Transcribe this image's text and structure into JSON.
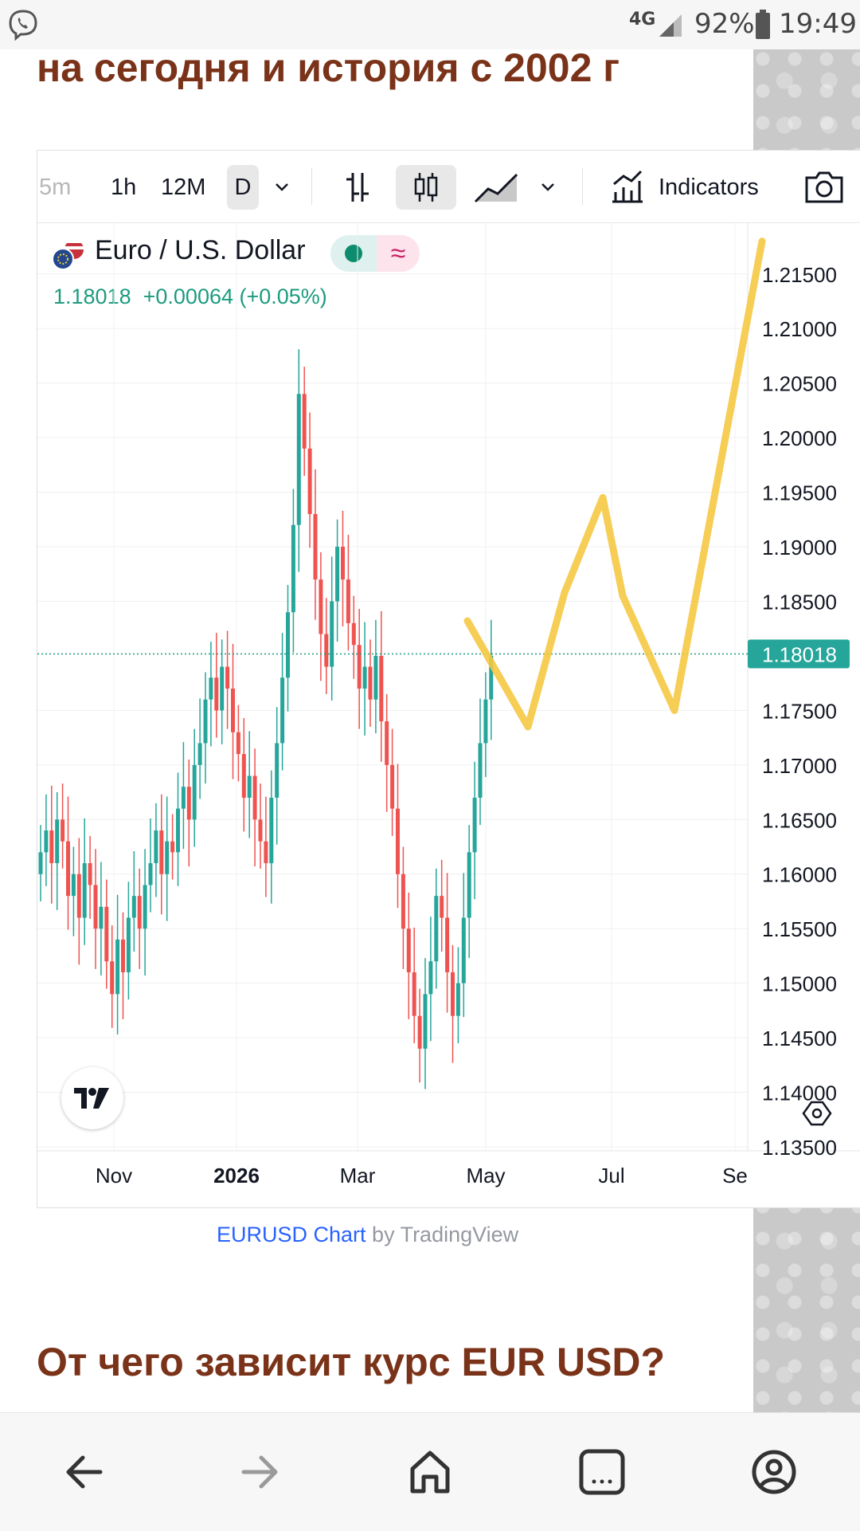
{
  "status_bar": {
    "network": "4G",
    "battery": "92%",
    "time": "19:49"
  },
  "article": {
    "top_heading": "на сегодня и история с 2002 г",
    "next_heading": "От чего зависит курс EUR USD?"
  },
  "toolbar": {
    "intervals": [
      "5m",
      "1h",
      "12M",
      "D"
    ],
    "indicators_label": "Indicators"
  },
  "legend": {
    "symbol": "Euro / U.S. Dollar",
    "last": "1.18018",
    "change": "+0.00064 (+0.05%)"
  },
  "price_axis": {
    "labels": [
      "1.21500",
      "1.21000",
      "1.20500",
      "1.20000",
      "1.19500",
      "1.19000",
      "1.18500",
      "1.17500",
      "1.17000",
      "1.16500",
      "1.16000",
      "1.15500",
      "1.15000",
      "1.14500",
      "1.14000",
      "1.13500"
    ],
    "current_price": "1.18018"
  },
  "time_axis": {
    "labels": [
      "Nov",
      "2026",
      "Mar",
      "May",
      "Jul",
      "Se"
    ]
  },
  "footer": {
    "link": "EURUSD Chart",
    "by": " by TradingView"
  },
  "colors": {
    "up": "#26a69a",
    "down": "#ef5350",
    "heading": "#7a3319",
    "accent": "#2962ff",
    "drawing": "#f5c842"
  },
  "chart_data": {
    "type": "candlestick",
    "symbol": "Euro / U.S. Dollar",
    "ylim": [
      1.135,
      1.219
    ],
    "price_line": 1.18018,
    "close_series": [
      1.162,
      1.164,
      1.161,
      1.165,
      1.163,
      1.158,
      1.16,
      1.156,
      1.161,
      1.159,
      1.155,
      1.157,
      1.152,
      1.149,
      1.154,
      1.151,
      1.156,
      1.158,
      1.155,
      1.159,
      1.161,
      1.164,
      1.16,
      1.163,
      1.162,
      1.166,
      1.168,
      1.165,
      1.17,
      1.172,
      1.176,
      1.178,
      1.175,
      1.179,
      1.177,
      1.173,
      1.171,
      1.167,
      1.169,
      1.165,
      1.163,
      1.161,
      1.167,
      1.172,
      1.178,
      1.184,
      1.192,
      1.204,
      1.199,
      1.193,
      1.187,
      1.182,
      1.179,
      1.185,
      1.19,
      1.187,
      1.183,
      1.181,
      1.177,
      1.179,
      1.176,
      1.18,
      1.174,
      1.17,
      1.166,
      1.16,
      1.155,
      1.151,
      1.147,
      1.144,
      1.149,
      1.152,
      1.158,
      1.156,
      1.151,
      1.147,
      1.15,
      1.156,
      1.162,
      1.167,
      1.172,
      1.176,
      1.18
    ],
    "drawing_path": [
      [
        1.1832,
        0
      ],
      [
        1.1735,
        1
      ],
      [
        1.1858,
        2
      ],
      [
        1.1945,
        3
      ],
      [
        1.1855,
        4
      ],
      [
        1.175,
        5
      ],
      [
        1.218,
        6
      ]
    ]
  }
}
